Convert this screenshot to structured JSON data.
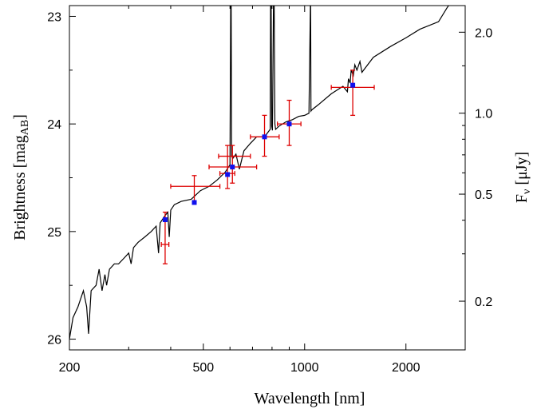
{
  "chart_data": {
    "type": "scatter",
    "xlabel": "Wavelength [nm]",
    "ylabel": "Brightness [mag",
    "ylabel_sub": "AB",
    "ylabel_close": "]",
    "y2label": "F",
    "y2label_sub": "ν",
    "y2label_unit": "[μJy]",
    "xscale": "log",
    "xlim": [
      200,
      3000
    ],
    "ylim": [
      26.1,
      22.9
    ],
    "y_inverted": true,
    "x_ticks": [
      {
        "value": 200,
        "label": "200"
      },
      {
        "value": 500,
        "label": "500"
      },
      {
        "value": 1000,
        "label": "1000"
      },
      {
        "value": 2000,
        "label": "2000"
      }
    ],
    "y_ticks": [
      {
        "value": 23,
        "label": "23"
      },
      {
        "value": 24,
        "label": "24"
      },
      {
        "value": 25,
        "label": "25"
      },
      {
        "value": 26,
        "label": "26"
      }
    ],
    "y2_ticks": [
      {
        "value": 2.0,
        "label": "2.0"
      },
      {
        "value": 1.0,
        "label": "1.0"
      },
      {
        "value": 0.5,
        "label": "0.5"
      },
      {
        "value": 0.2,
        "label": "0.2"
      }
    ],
    "model_spectrum": {
      "color": "#000000",
      "x": [
        200,
        205,
        212,
        220,
        225,
        228,
        232,
        240,
        245,
        250,
        255,
        258,
        263,
        272,
        280,
        290,
        300,
        305,
        310,
        320,
        335,
        350,
        362,
        368,
        372,
        385,
        392,
        396,
        400,
        410,
        430,
        460,
        490,
        520,
        550,
        580,
        600,
        603,
        605,
        607,
        612,
        625,
        640,
        660,
        690,
        720,
        760,
        790,
        792,
        795,
        798,
        802,
        808,
        812,
        816,
        820,
        840,
        880,
        920,
        960,
        1000,
        1030,
        1040,
        1042,
        1044,
        1050,
        1100,
        1200,
        1300,
        1340,
        1350,
        1365,
        1375,
        1395,
        1410,
        1430,
        1460,
        1480,
        1600,
        1800,
        2000,
        2200,
        2500,
        2650,
        2750,
        2880,
        3000
      ],
      "y": [
        26.0,
        25.8,
        25.7,
        25.55,
        25.7,
        25.95,
        25.55,
        25.5,
        25.35,
        25.55,
        25.4,
        25.5,
        25.35,
        25.3,
        25.3,
        25.25,
        25.2,
        25.3,
        25.15,
        25.1,
        25.05,
        25.0,
        24.95,
        25.2,
        24.92,
        24.85,
        24.82,
        25.05,
        24.8,
        24.75,
        24.72,
        24.7,
        24.62,
        24.58,
        24.52,
        24.45,
        24.38,
        22.9,
        22.9,
        24.3,
        24.32,
        24.28,
        24.42,
        24.25,
        24.18,
        24.12,
        24.12,
        24.05,
        22.9,
        22.9,
        24.02,
        24.06,
        22.9,
        22.9,
        24.0,
        24.05,
        24.02,
        23.98,
        23.96,
        23.93,
        23.92,
        23.9,
        22.9,
        22.9,
        23.88,
        23.87,
        23.82,
        23.72,
        23.65,
        23.7,
        23.58,
        23.62,
        23.5,
        23.55,
        23.45,
        23.5,
        23.42,
        23.52,
        23.38,
        23.28,
        23.2,
        23.12,
        23.05,
        22.92,
        22.85,
        22.88,
        22.88
      ]
    },
    "observations": {
      "marker_color": "#1010ee",
      "error_color": "#dd0000",
      "points": [
        {
          "x": 385,
          "y": 25.12,
          "xlo": 375,
          "xhi": 395,
          "ylo": 24.82,
          "yhi": 25.3,
          "marker": false
        },
        {
          "x": 385,
          "y": 24.89,
          "marker": true
        },
        {
          "x": 470,
          "y": 24.58,
          "xlo": 400,
          "xhi": 560,
          "ylo": 24.48,
          "yhi": 24.73,
          "marker": false
        },
        {
          "x": 470,
          "y": 24.73,
          "marker": true
        },
        {
          "x": 590,
          "y": 24.46,
          "xlo": 560,
          "xhi": 620,
          "ylo": 24.2,
          "yhi": 24.6,
          "marker": false
        },
        {
          "x": 590,
          "y": 24.47,
          "marker": true
        },
        {
          "x": 610,
          "y": 24.4,
          "xlo": 520,
          "xhi": 720,
          "ylo": 24.2,
          "yhi": 24.55,
          "marker": false
        },
        {
          "x": 610,
          "y": 24.4,
          "marker": true
        },
        {
          "x": 620,
          "y": 24.3,
          "xlo": 555,
          "xhi": 690,
          "ylo": 24.3,
          "yhi": 24.3,
          "marker": false
        },
        {
          "x": 760,
          "y": 24.12,
          "xlo": 690,
          "xhi": 840,
          "ylo": 23.92,
          "yhi": 24.3,
          "marker": false
        },
        {
          "x": 760,
          "y": 24.12,
          "marker": true
        },
        {
          "x": 900,
          "y": 24.0,
          "xlo": 830,
          "xhi": 975,
          "ylo": 23.78,
          "yhi": 24.2,
          "marker": false
        },
        {
          "x": 900,
          "y": 24.0,
          "marker": true
        },
        {
          "x": 1390,
          "y": 23.66,
          "xlo": 1200,
          "xhi": 1610,
          "ylo": 23.5,
          "yhi": 23.92,
          "marker": false
        },
        {
          "x": 1390,
          "y": 23.64,
          "marker": true
        }
      ]
    }
  }
}
